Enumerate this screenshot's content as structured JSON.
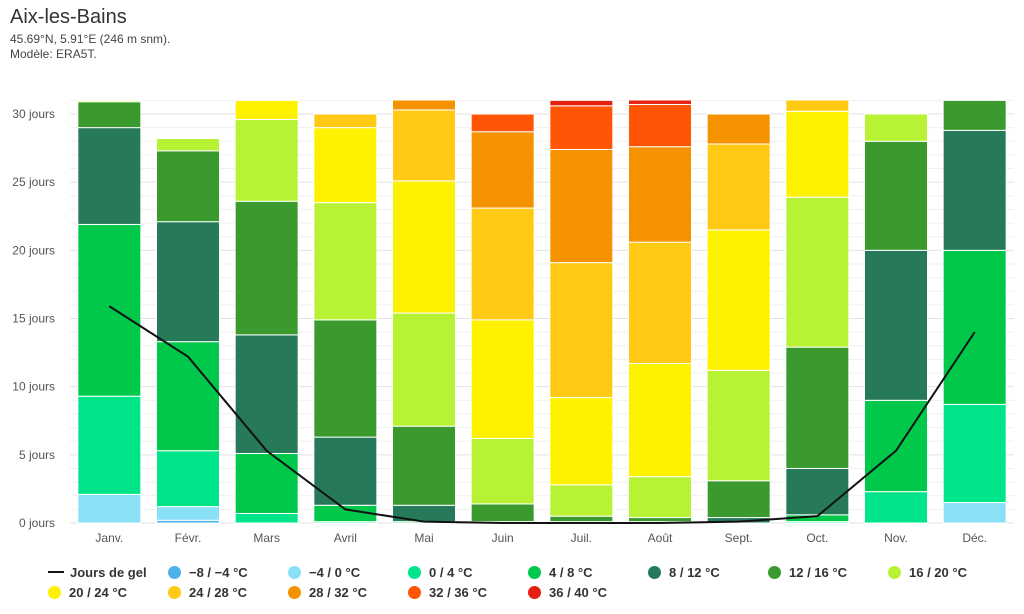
{
  "header": {
    "title": "Aix-les-Bains",
    "coords": "45.69°N, 5.91°E (246 m snm).",
    "model": "Modèle: ERA5T."
  },
  "chart_data": {
    "type": "bar",
    "stacked": true,
    "categories": [
      "Janv.",
      "Févr.",
      "Mars",
      "Avril",
      "Mai",
      "Juin",
      "Juil.",
      "Août",
      "Sept.",
      "Oct.",
      "Nov.",
      "Déc."
    ],
    "y_ticks": [
      "0 jours",
      "5 jours",
      "10 jours",
      "15 jours",
      "20 jours",
      "25 jours",
      "30 jours"
    ],
    "ylim": [
      0,
      31
    ],
    "grid": true,
    "legend_placement": "bottom",
    "series": [
      {
        "name": "−8 / −4 °C",
        "color": "#4cb3e8",
        "values": [
          0,
          0.2,
          0,
          0,
          0,
          0,
          0,
          0,
          0,
          0,
          0,
          0
        ]
      },
      {
        "name": "−4 / 0 °C",
        "color": "#8ae0f7",
        "values": [
          2.1,
          1.0,
          0,
          0,
          0,
          0,
          0,
          0,
          0,
          0,
          0,
          1.5
        ]
      },
      {
        "name": "0 / 4 °C",
        "color": "#00e58a",
        "values": [
          7.2,
          4.1,
          0.7,
          0.1,
          0,
          0,
          0,
          0,
          0,
          0.1,
          2.3,
          7.2
        ]
      },
      {
        "name": "4 / 8 °C",
        "color": "#00c84a",
        "values": [
          12.6,
          8.0,
          4.4,
          1.2,
          0.1,
          0,
          0,
          0,
          0,
          0.5,
          6.7,
          11.3
        ]
      },
      {
        "name": "8 / 12 °C",
        "color": "#267a5a",
        "values": [
          7.1,
          8.8,
          8.7,
          5.0,
          1.2,
          0.1,
          0.1,
          0.1,
          0.4,
          3.4,
          11.0,
          8.8
        ]
      },
      {
        "name": "12 / 16 °C",
        "color": "#3a9a2e",
        "values": [
          1.9,
          5.2,
          9.8,
          8.6,
          5.8,
          1.3,
          0.4,
          0.3,
          2.7,
          8.9,
          8.0,
          2.2
        ]
      },
      {
        "name": "16 / 20 °C",
        "color": "#b7f235",
        "values": [
          0.1,
          0.9,
          6.0,
          8.6,
          8.3,
          4.8,
          2.3,
          3.0,
          8.1,
          11.0,
          2.0,
          0
        ]
      },
      {
        "name": "20 / 24 °C",
        "color": "#fff200",
        "values": [
          0,
          0,
          1.4,
          5.5,
          9.7,
          8.7,
          6.4,
          8.3,
          10.3,
          6.3,
          0,
          0
        ]
      },
      {
        "name": "24 / 28 °C",
        "color": "#ffc914",
        "values": [
          0,
          0,
          0,
          1.0,
          5.2,
          8.2,
          9.9,
          8.9,
          6.3,
          0.9,
          0,
          0
        ]
      },
      {
        "name": "28 / 32 °C",
        "color": "#f59200",
        "values": [
          0,
          0,
          0,
          0,
          0.9,
          5.6,
          8.3,
          7.0,
          2.2,
          0,
          0,
          0
        ]
      },
      {
        "name": "32 / 36 °C",
        "color": "#ff5505",
        "values": [
          0,
          0,
          0,
          0,
          0,
          1.3,
          3.2,
          3.1,
          0,
          0,
          0,
          0
        ]
      },
      {
        "name": "36 / 40 °C",
        "color": "#e52010",
        "values": [
          0,
          0,
          0,
          0,
          0,
          0,
          0.4,
          0.4,
          0,
          0,
          0,
          0
        ]
      }
    ],
    "line_series": {
      "name": "Jours de gel",
      "color": "#111111",
      "values": [
        15.9,
        12.2,
        5.3,
        1.0,
        0.1,
        0,
        0,
        0,
        0.1,
        0.5,
        5.3,
        14.0
      ]
    }
  }
}
